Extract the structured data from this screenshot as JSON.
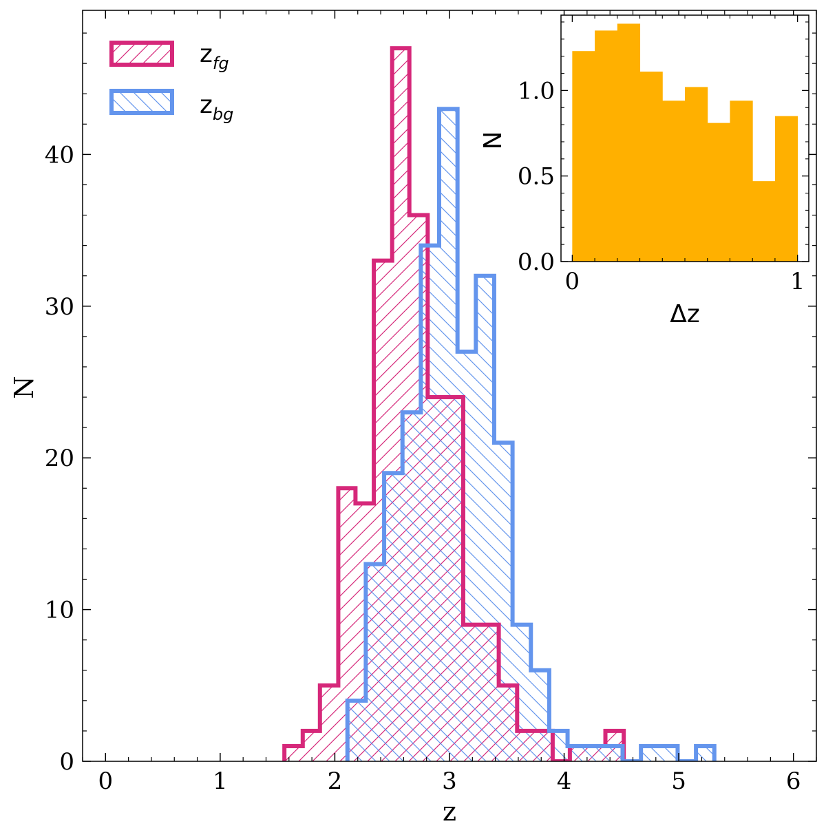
{
  "chart_data": [
    {
      "type": "histogram",
      "xlabel": "z",
      "ylabel": "N",
      "xlim": [
        -0.2,
        6.2
      ],
      "ylim": [
        0,
        49.5
      ],
      "xticks": [
        0,
        1,
        2,
        3,
        4,
        5,
        6
      ],
      "yticks": [
        0,
        10,
        20,
        30,
        40
      ],
      "legend_location": "top-left",
      "series": [
        {
          "name": "z_fg",
          "label_main": "z",
          "label_sub": "fg",
          "color": "#d6287a",
          "hatch": "forward-diagonal",
          "bin_edges": [
            1.56,
            1.72,
            1.87,
            2.03,
            2.18,
            2.34,
            2.5,
            2.65,
            2.81,
            2.96,
            3.12,
            3.27,
            3.43,
            3.59,
            3.74,
            3.9,
            4.05,
            4.21,
            4.36,
            4.52
          ],
          "counts": [
            1,
            2,
            5,
            18,
            17,
            33,
            47,
            36,
            24,
            24,
            9,
            9,
            5,
            2,
            2,
            0,
            1,
            1,
            2
          ]
        },
        {
          "name": "z_bg",
          "label_main": "z",
          "label_sub": "bg",
          "color": "#6495ed",
          "hatch": "backward-diagonal",
          "bin_edges": [
            2.11,
            2.27,
            2.43,
            2.59,
            2.75,
            2.91,
            3.07,
            3.23,
            3.39,
            3.55,
            3.71,
            3.87,
            4.03,
            4.19,
            4.35,
            4.51,
            4.67,
            4.83,
            4.99,
            5.15,
            5.31
          ],
          "counts": [
            4,
            13,
            19,
            23,
            34,
            43,
            27,
            32,
            21,
            9,
            6,
            2,
            1,
            1,
            1,
            0,
            1,
            1,
            0,
            1
          ]
        }
      ]
    },
    {
      "type": "histogram",
      "position": "inset top-right",
      "xlabel": "Δz",
      "ylabel": "N",
      "xlim": [
        -0.05,
        1.05
      ],
      "ylim": [
        0,
        1.44
      ],
      "xticks": [
        0,
        1
      ],
      "yticks": [
        "0.0",
        "0.5",
        "1.0"
      ],
      "color": "#ffb000",
      "bin_edges": [
        0.0,
        0.1,
        0.2,
        0.3,
        0.4,
        0.5,
        0.6,
        0.7,
        0.8,
        0.9,
        1.0
      ],
      "counts": [
        1.23,
        1.35,
        1.39,
        1.11,
        0.94,
        1.02,
        0.81,
        0.94,
        0.47,
        0.85
      ]
    }
  ]
}
